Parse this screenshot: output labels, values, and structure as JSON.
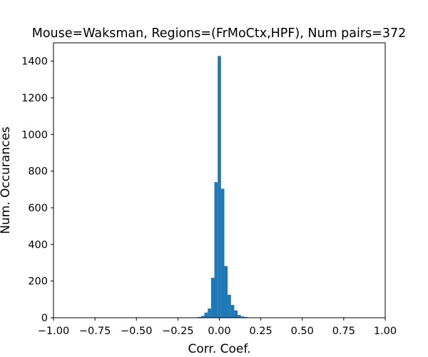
{
  "chart_data": {
    "type": "bar",
    "subtype": "histogram",
    "title": "Mouse=Waksman, Regions=(FrMoCtx,HPF), Num pairs=372",
    "xlabel": "Corr. Coef.",
    "ylabel": "Num. Occurances",
    "xlim": [
      -1.0,
      1.0
    ],
    "ylim": [
      0,
      1500
    ],
    "xticks": [
      "−1.00",
      "−0.75",
      "−0.50",
      "−0.25",
      "0.00",
      "0.25",
      "0.50",
      "0.75",
      "1.00"
    ],
    "xtick_values": [
      -1.0,
      -0.75,
      -0.5,
      -0.25,
      0.0,
      0.25,
      0.5,
      0.75,
      1.0
    ],
    "yticks": [
      "0",
      "200",
      "400",
      "600",
      "800",
      "1000",
      "1200",
      "1400"
    ],
    "ytick_values": [
      0,
      200,
      400,
      600,
      800,
      1000,
      1200,
      1400
    ],
    "grid": false,
    "bar_color": "#1f77b4",
    "bin_width": 0.02,
    "bins": [
      {
        "x": -0.14,
        "y": 2
      },
      {
        "x": -0.12,
        "y": 4
      },
      {
        "x": -0.1,
        "y": 10
      },
      {
        "x": -0.08,
        "y": 28
      },
      {
        "x": -0.06,
        "y": 50
      },
      {
        "x": -0.04,
        "y": 218
      },
      {
        "x": -0.02,
        "y": 740
      },
      {
        "x": 0.0,
        "y": 1428
      },
      {
        "x": 0.02,
        "y": 704
      },
      {
        "x": 0.04,
        "y": 282
      },
      {
        "x": 0.06,
        "y": 125
      },
      {
        "x": 0.08,
        "y": 70
      },
      {
        "x": 0.1,
        "y": 40
      },
      {
        "x": 0.12,
        "y": 15
      },
      {
        "x": 0.14,
        "y": 7
      },
      {
        "x": 0.16,
        "y": 4
      },
      {
        "x": 0.18,
        "y": 2
      }
    ]
  }
}
